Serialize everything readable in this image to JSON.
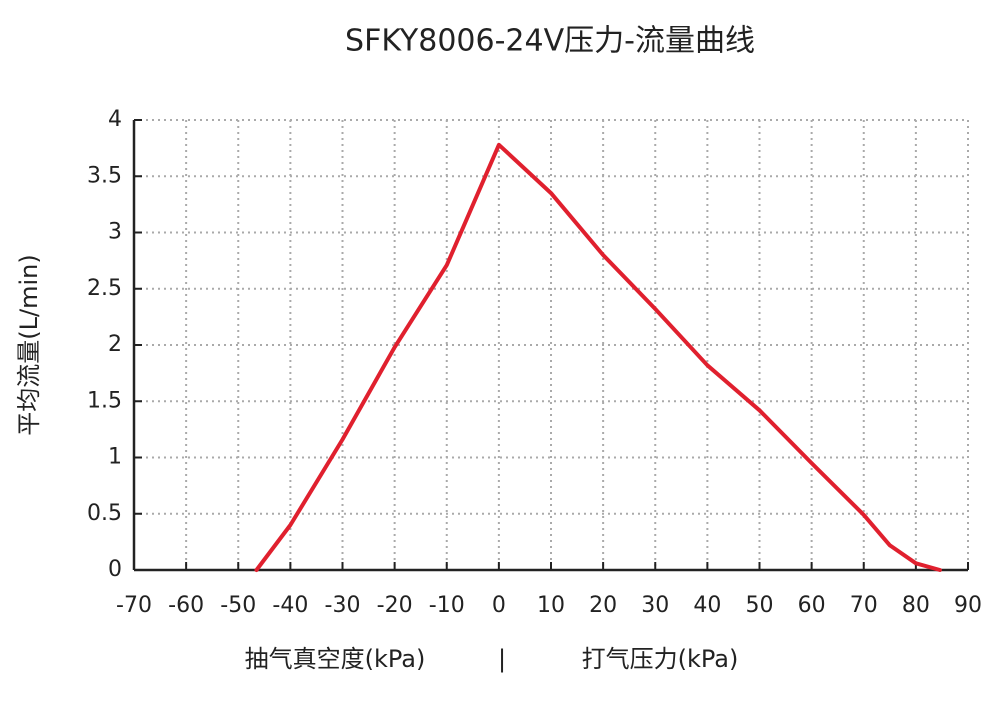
{
  "chart_data": {
    "type": "line",
    "title": "SFKY8006-24V压力-流量曲线",
    "y_label": "平均流量(L/min)",
    "x_label_left": "抽气真空度(kPa)",
    "x_label_separator": "|",
    "x_label_right": "打气压力(kPa)",
    "x": [
      -46.5,
      -40,
      -30,
      -20,
      -10,
      0,
      10,
      20,
      30,
      40,
      50,
      60,
      70,
      75,
      80,
      84.6
    ],
    "values": [
      0,
      0.4,
      1.16,
      1.98,
      2.71,
      3.78,
      3.35,
      2.8,
      2.32,
      1.82,
      1.42,
      0.95,
      0.49,
      0.22,
      0.06,
      0
    ],
    "color": "#e0202e",
    "xlim": [
      -70,
      90
    ],
    "xticks": [
      -70,
      -60,
      -50,
      -40,
      -30,
      -20,
      -10,
      0,
      10,
      20,
      30,
      40,
      50,
      60,
      70,
      80,
      90
    ],
    "ylim": [
      0,
      4
    ],
    "yticks": [
      0,
      0.5,
      1,
      1.5,
      2,
      2.5,
      3,
      3.5,
      4
    ],
    "grid": true
  }
}
